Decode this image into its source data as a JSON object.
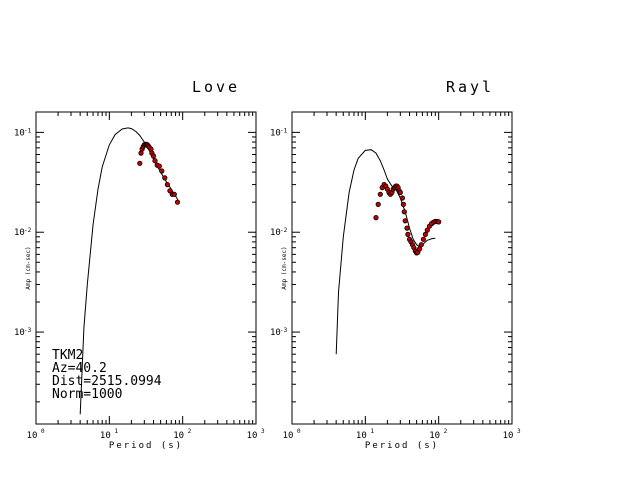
{
  "info": {
    "station": "TKM2",
    "azimuth": "Az=40.2",
    "distance": "Dist=2515.0994",
    "norm": "Norm=1000"
  },
  "chart_data": [
    {
      "type": "scatter",
      "title": "Love",
      "xlabel": "Period (s)",
      "ylabel": "Amp (cm-sec)",
      "xscale": "log",
      "yscale": "log",
      "xlim": [
        1,
        1000
      ],
      "ylim": [
        0.00012,
        0.16
      ],
      "xticks": [
        "10",
        "10",
        "10",
        "10"
      ],
      "xtick_exponents": [
        "0",
        "1",
        "2",
        "3"
      ],
      "yticks": [
        "10",
        "10",
        "10"
      ],
      "ytick_exponents": [
        "-1",
        "-2",
        "-3"
      ],
      "series": [
        {
          "kind": "line",
          "x": [
            4.0,
            4.5,
            5,
            6,
            7,
            8,
            10,
            12,
            15,
            18,
            20,
            23,
            26,
            30,
            35,
            40,
            50,
            60,
            70,
            80,
            90
          ],
          "y": [
            0.00015,
            0.0011,
            0.003,
            0.012,
            0.027,
            0.045,
            0.075,
            0.095,
            0.108,
            0.111,
            0.109,
            0.102,
            0.093,
            0.08,
            0.066,
            0.054,
            0.04,
            0.032,
            0.027,
            0.023,
            0.02
          ]
        },
        {
          "kind": "points",
          "x": [
            26,
            27,
            28,
            29,
            30,
            31,
            32,
            33,
            34,
            35,
            37,
            38,
            40,
            42,
            45,
            48,
            52,
            57,
            62,
            67,
            72,
            77,
            85
          ],
          "y": [
            0.049,
            0.062,
            0.068,
            0.072,
            0.075,
            0.076,
            0.076,
            0.075,
            0.073,
            0.071,
            0.068,
            0.062,
            0.058,
            0.052,
            0.047,
            0.046,
            0.041,
            0.035,
            0.03,
            0.026,
            0.024,
            0.024,
            0.02
          ]
        }
      ]
    },
    {
      "type": "scatter",
      "title": "Rayl",
      "xlabel": "Period (s)",
      "ylabel": "Amp (cm-sec)",
      "xscale": "log",
      "yscale": "log",
      "xlim": [
        1,
        1000
      ],
      "ylim": [
        0.00012,
        0.16
      ],
      "xticks": [
        "10",
        "10",
        "10",
        "10"
      ],
      "xtick_exponents": [
        "0",
        "1",
        "2",
        "3"
      ],
      "yticks": [
        "10",
        "10",
        "10"
      ],
      "ytick_exponents": [
        "-1",
        "-2",
        "-3"
      ],
      "series": [
        {
          "kind": "line",
          "x": [
            4.0,
            4.3,
            5,
            6,
            7,
            8,
            10,
            12,
            14,
            16,
            18,
            20,
            23,
            26,
            30,
            35,
            40,
            45,
            50,
            55,
            60,
            70,
            80,
            90
          ],
          "y": [
            0.0006,
            0.0025,
            0.009,
            0.025,
            0.042,
            0.055,
            0.066,
            0.067,
            0.062,
            0.052,
            0.042,
            0.034,
            0.029,
            0.027,
            0.022,
            0.016,
            0.011,
            0.0085,
            0.0075,
            0.0072,
            0.0075,
            0.0083,
            0.0086,
            0.0087
          ]
        },
        {
          "kind": "points",
          "x": [
            14,
            15,
            16,
            17,
            18,
            19,
            20,
            21,
            22,
            23,
            24,
            25,
            26,
            27,
            28,
            29,
            30,
            32,
            33,
            34,
            35,
            37,
            38,
            40,
            42,
            44,
            46,
            48,
            50,
            52,
            55,
            58,
            62,
            66,
            70,
            75,
            80,
            85,
            90,
            95,
            100
          ],
          "y": [
            0.014,
            0.019,
            0.024,
            0.028,
            0.03,
            0.029,
            0.027,
            0.025,
            0.024,
            0.025,
            0.027,
            0.028,
            0.029,
            0.029,
            0.028,
            0.026,
            0.025,
            0.022,
            0.019,
            0.016,
            0.013,
            0.011,
            0.0095,
            0.0085,
            0.008,
            0.0075,
            0.007,
            0.0065,
            0.0062,
            0.0063,
            0.0068,
            0.0075,
            0.0085,
            0.0095,
            0.0105,
            0.0115,
            0.0122,
            0.0126,
            0.0128,
            0.0128,
            0.0127
          ]
        }
      ]
    }
  ]
}
